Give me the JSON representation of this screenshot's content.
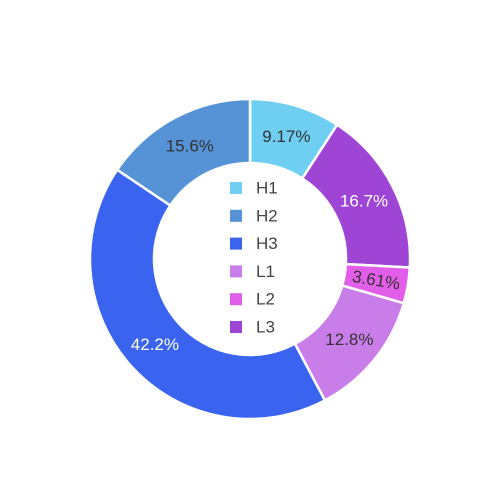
{
  "chart_data": {
    "type": "pie",
    "donut": true,
    "labels": [
      "H1",
      "H2",
      "H3",
      "L1",
      "L2",
      "L3"
    ],
    "values": [
      9.17,
      15.6,
      42.2,
      12.8,
      3.61,
      16.7
    ],
    "percent_labels": [
      "9.17%",
      "15.6%",
      "42.2%",
      "12.8%",
      "3.61%",
      "16.7%"
    ],
    "colors": [
      "#6fcff2",
      "#5593d6",
      "#3a63f0",
      "#c97de8",
      "#e35ee8",
      "#9e45d6"
    ],
    "label_colors": [
      "#333333",
      "#333333",
      "#ffffff",
      "#333333",
      "#333333",
      "#ffffff"
    ],
    "slice_order_clockwise_from_top": [
      "H1",
      "L3",
      "L2",
      "L1",
      "H3",
      "H2"
    ],
    "legend": {
      "position": "center",
      "entries": [
        "H1",
        "H2",
        "H3",
        "L1",
        "L2",
        "L3"
      ]
    }
  }
}
